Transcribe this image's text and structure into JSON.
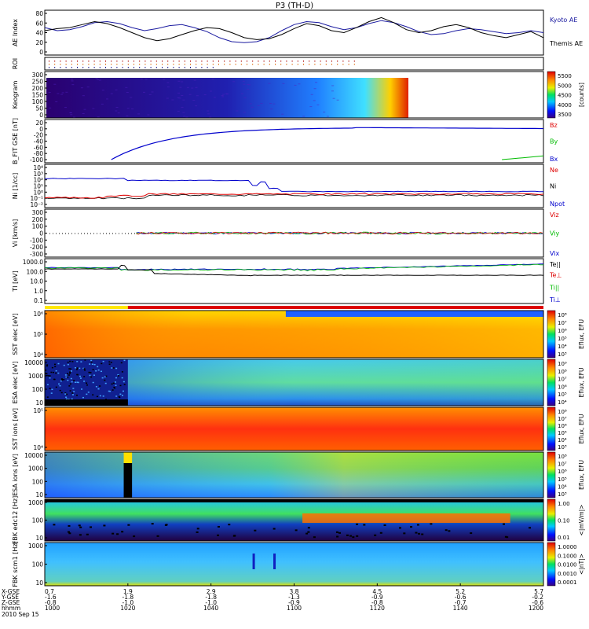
{
  "title": "P3 (TH-D)",
  "colors": {
    "kyoto_ae": "#1a1aa0",
    "themis_ae": "#000000",
    "red": "#dd0000",
    "green": "#00bb00",
    "blue": "#0000cc",
    "black": "#000000"
  },
  "panels": {
    "ae": {
      "ylabel": "AE Index",
      "yticks": [
        "80",
        "60",
        "40",
        "20",
        "0"
      ],
      "legend": [
        {
          "label": "Kyoto AE",
          "color": "#1a1aa0"
        },
        {
          "label": "Themis AE",
          "color": "#000000"
        }
      ]
    },
    "roi": {
      "ylabel": "ROI"
    },
    "keogram": {
      "ylabel": "Keogram",
      "yticks": [
        "300",
        "250",
        "200",
        "150",
        "100",
        "50",
        "0"
      ],
      "colorbar_ticks": [
        "5500",
        "5000",
        "4500",
        "4000",
        "3500"
      ],
      "colorbar_label": "[counts]"
    },
    "bfield": {
      "ylabel": "B_FIT GSE [nT]",
      "yticks": [
        "20",
        "0",
        "-20",
        "-40",
        "-60",
        "-80",
        "-100"
      ],
      "legend": [
        {
          "label": "Bz",
          "color": "#dd0000"
        },
        {
          "label": "By",
          "color": "#00bb00"
        },
        {
          "label": "Bx",
          "color": "#0000cc"
        }
      ]
    },
    "density": {
      "ylabel": "Ni [1/cc]",
      "yticks": [
        "10⁴",
        "10³",
        "10²",
        "10¹",
        "10⁰",
        "10⁻¹",
        "10⁻²"
      ],
      "legend": [
        {
          "label": "Ne",
          "color": "#dd0000"
        },
        {
          "label": "Ni",
          "color": "#000000"
        },
        {
          "label": "Npot",
          "color": "#0000cc"
        }
      ]
    },
    "velocity": {
      "ylabel": "Vi [km/s]",
      "yticks": [
        "300",
        "200",
        "100",
        "0",
        "-100",
        "-200",
        "-300"
      ],
      "legend": [
        {
          "label": "Viz",
          "color": "#dd0000"
        },
        {
          "label": "Viy",
          "color": "#00bb00"
        },
        {
          "label": "Vix",
          "color": "#0000cc"
        }
      ]
    },
    "temperature": {
      "ylabel": "TI [eV]",
      "yticks": [
        "1000.0",
        "100.0",
        "10.0",
        "1.0",
        "0.1"
      ],
      "legend": [
        {
          "label": "Te||",
          "color": "#000000"
        },
        {
          "label": "Te⊥",
          "color": "#dd0000"
        },
        {
          "label": "Ti||",
          "color": "#00bb00"
        },
        {
          "label": "Ti⊥",
          "color": "#0000cc"
        }
      ]
    },
    "sst_e": {
      "ylabel": "SST elec [eV]",
      "yticks": [
        "10⁶",
        "10⁵",
        "10⁴"
      ],
      "colorbar_ticks": [
        "10⁸",
        "10⁷",
        "10⁶",
        "10⁵",
        "10⁴",
        "10³"
      ],
      "colorbar_label": "Eflux, EFU"
    },
    "esa_e": {
      "ylabel": "ESA elec [eV]",
      "yticks": [
        "10000",
        "1000",
        "100",
        "10"
      ],
      "colorbar_ticks": [
        "10⁹",
        "10⁸",
        "10⁷",
        "10⁶",
        "10⁵",
        "10⁴"
      ],
      "colorbar_label": "Eflux, EFU"
    },
    "sst_i": {
      "ylabel": "SST ions [eV]",
      "yticks": [
        "10⁵",
        "10⁴"
      ],
      "colorbar_ticks": [
        "10⁸",
        "10⁷",
        "10⁶",
        "10⁵",
        "10⁴",
        "10³"
      ],
      "colorbar_label": "Eflux, EFU"
    },
    "esa_i": {
      "ylabel": "ESA ions [eV]",
      "yticks": [
        "10000",
        "1000",
        "100",
        "10"
      ],
      "colorbar_ticks": [
        "10⁸",
        "10⁷",
        "10⁶",
        "10⁵",
        "10⁴",
        "10³"
      ],
      "colorbar_label": "Eflux, EFU"
    },
    "fbk_e": {
      "ylabel": "FBK edc12 [Hz]",
      "yticks": [
        "1000",
        "100",
        "10"
      ],
      "colorbar_ticks": [
        "1.00",
        "0.10",
        "0.01"
      ],
      "colorbar_label": "<|mV/m|>"
    },
    "fbk_b": {
      "ylabel": "FBK scm1 [Hz]",
      "yticks": [
        "1000",
        "100",
        "10"
      ],
      "colorbar_ticks": [
        "1.0000",
        "0.1000",
        "0.0100",
        "0.0010",
        "0.0001"
      ],
      "colorbar_label": "<|nT|>"
    }
  },
  "axis": {
    "row_labels": [
      "X-GSE",
      "Y-GSE",
      "Z-GSE",
      "hhmm",
      "2010 Sep 15"
    ],
    "ticks": [
      {
        "x": "0.7",
        "y": "-1.6",
        "z": "-0.8",
        "t": "1000"
      },
      {
        "x": "1.9",
        "y": "-1.8",
        "z": "-1.0",
        "t": "1020"
      },
      {
        "x": "2.9",
        "y": "-1.8",
        "z": "-1.0",
        "t": "1040"
      },
      {
        "x": "3.8",
        "y": "-1.3",
        "z": "-0.9",
        "t": "1100"
      },
      {
        "x": "4.5",
        "y": "-0.9",
        "z": "-0.8",
        "t": "1120"
      },
      {
        "x": "5.2",
        "y": "-0.6",
        "z": "-0.7",
        "t": "1140"
      },
      {
        "x": "5.7",
        "y": "-0.2",
        "z": "-0.6",
        "t": "1200"
      }
    ]
  },
  "chart_data": [
    {
      "type": "line",
      "title": "",
      "ylabel": "AE Index",
      "x": [
        "1000",
        "1020",
        "1040",
        "1100",
        "1120",
        "1140",
        "1200"
      ],
      "series": [
        {
          "name": "Kyoto AE",
          "values": [
            50,
            40,
            50,
            20,
            60,
            45,
            35
          ]
        },
        {
          "name": "Themis AE",
          "values": [
            45,
            55,
            40,
            25,
            55,
            40,
            30
          ]
        }
      ],
      "ylim": [
        0,
        80
      ]
    },
    {
      "type": "line",
      "ylabel": "B_FIT GSE [nT]",
      "x": [
        "1000",
        "1020",
        "1040",
        "1100",
        "1120",
        "1140",
        "1200"
      ],
      "series": [
        {
          "name": "Bx",
          "values": [
            null,
            -70,
            -10,
            2,
            4,
            0,
            -2
          ]
        },
        {
          "name": "By",
          "values": [
            null,
            null,
            null,
            null,
            null,
            null,
            -90
          ]
        }
      ],
      "ylim": [
        -100,
        20
      ]
    },
    {
      "type": "line",
      "ylabel": "Ni [1/cc]",
      "x": [
        "1000",
        "1020",
        "1040",
        "1100",
        "1120",
        "1140",
        "1200"
      ],
      "series": [
        {
          "name": "Npot",
          "values": [
            100,
            100,
            100,
            1,
            0.5,
            0.5,
            0.5
          ]
        },
        {
          "name": "Ne",
          "values": [
            0.2,
            0.2,
            0.5,
            0.5,
            0.8,
            0.8,
            0.8
          ]
        },
        {
          "name": "Ni",
          "values": [
            0.1,
            0.1,
            0.3,
            0.4,
            0.5,
            0.5,
            0.6
          ]
        }
      ],
      "ylim": [
        0.01,
        10000
      ]
    },
    {
      "type": "line",
      "ylabel": "Vi [km/s]",
      "x": [
        "1000",
        "1020",
        "1040",
        "1100",
        "1120",
        "1140",
        "1200"
      ],
      "series": [
        {
          "name": "Viz",
          "values": [
            null,
            0,
            0,
            0,
            0,
            0,
            0
          ]
        },
        {
          "name": "Viy",
          "values": [
            null,
            0,
            0,
            0,
            0,
            0,
            0
          ]
        },
        {
          "name": "Vix",
          "values": [
            null,
            0,
            0,
            0,
            0,
            0,
            0
          ]
        }
      ],
      "ylim": [
        -300,
        300
      ]
    },
    {
      "type": "line",
      "ylabel": "TI [eV]",
      "x": [
        "1000",
        "1020",
        "1040",
        "1100",
        "1120",
        "1140",
        "1200"
      ],
      "series": [
        {
          "name": "Te||",
          "values": [
            300,
            800,
            150,
            100,
            80,
            70,
            70
          ]
        },
        {
          "name": "Ti||",
          "values": [
            500,
            500,
            300,
            300,
            600,
            900,
            1000
          ]
        },
        {
          "name": "Ti⊥",
          "values": [
            400,
            400,
            300,
            300,
            600,
            1000,
            1200
          ]
        }
      ],
      "ylim": [
        0.1,
        3000
      ]
    },
    {
      "type": "heatmap",
      "ylabel": "Keogram",
      "ylim": [
        0,
        300
      ]
    },
    {
      "type": "heatmap",
      "ylabel": "SST elec [eV]"
    },
    {
      "type": "heatmap",
      "ylabel": "ESA elec [eV]",
      "ylim": [
        10,
        30000
      ]
    },
    {
      "type": "heatmap",
      "ylabel": "SST ions [eV]"
    },
    {
      "type": "heatmap",
      "ylabel": "ESA ions [eV]",
      "ylim": [
        10,
        30000
      ]
    },
    {
      "type": "heatmap",
      "ylabel": "FBK edc12 [Hz]",
      "ylim": [
        2,
        4000
      ]
    },
    {
      "type": "heatmap",
      "ylabel": "FBK scm1 [Hz]",
      "ylim": [
        2,
        4000
      ]
    }
  ]
}
